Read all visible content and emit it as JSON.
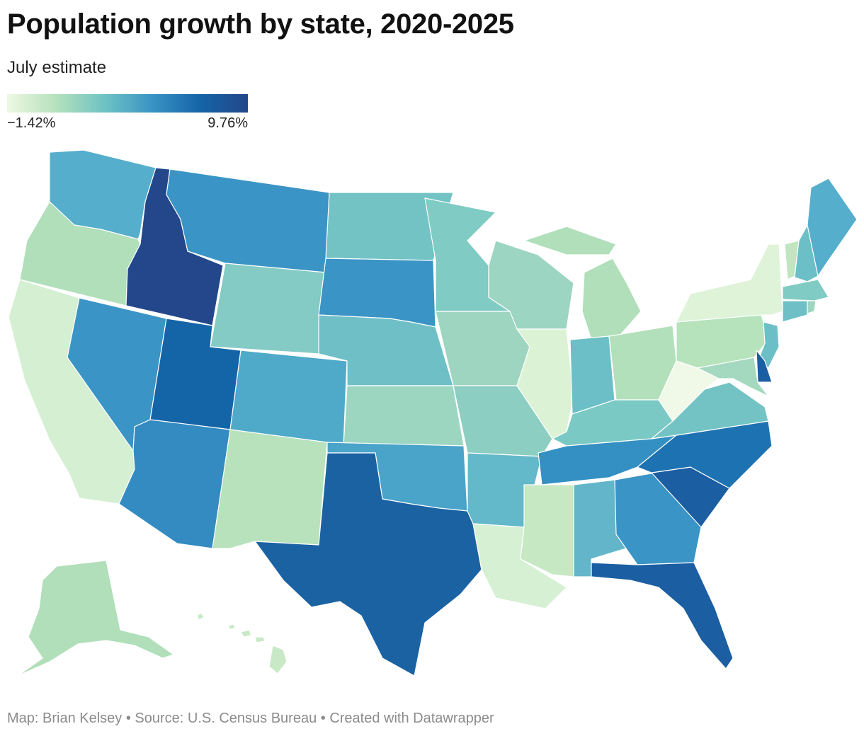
{
  "header": {
    "title": "Population growth by state, 2020-2025",
    "subtitle": "July estimate"
  },
  "legend": {
    "min_label": "−1.42%",
    "max_label": "9.76%",
    "min_value": -1.42,
    "max_value": 9.76,
    "color_ramp": [
      "#eef8e3",
      "#b6e2bc",
      "#6fc4c3",
      "#3a94c5",
      "#1465a7",
      "#23478a"
    ]
  },
  "footer": {
    "text": "Map: Brian Kelsey • Source: U.S. Census Bureau • Created with Datawrapper"
  },
  "map": {
    "type": "choropleth",
    "region": "United States",
    "states": [
      {
        "code": "WA",
        "color": "#55aecb"
      },
      {
        "code": "OR",
        "color": "#b0dfba"
      },
      {
        "code": "CA",
        "color": "#d4efd1"
      },
      {
        "code": "ID",
        "color": "#23478a"
      },
      {
        "code": "NV",
        "color": "#3a94c5"
      },
      {
        "code": "MT",
        "color": "#3a94c5"
      },
      {
        "code": "WY",
        "color": "#84cbc5"
      },
      {
        "code": "UT",
        "color": "#1465a7"
      },
      {
        "code": "CO",
        "color": "#4faac9"
      },
      {
        "code": "AZ",
        "color": "#348bc1"
      },
      {
        "code": "NM",
        "color": "#b8e2bb"
      },
      {
        "code": "ND",
        "color": "#73c3c4"
      },
      {
        "code": "SD",
        "color": "#3a94c5"
      },
      {
        "code": "NE",
        "color": "#6fc0c6"
      },
      {
        "code": "KS",
        "color": "#9cd6c1"
      },
      {
        "code": "OK",
        "color": "#4aa3c9"
      },
      {
        "code": "TX",
        "color": "#1b62a3"
      },
      {
        "code": "MN",
        "color": "#80cbc4"
      },
      {
        "code": "IA",
        "color": "#9dd5c1"
      },
      {
        "code": "MO",
        "color": "#8cceC2"
      },
      {
        "code": "AR",
        "color": "#63b8c9"
      },
      {
        "code": "LA",
        "color": "#d6f0d3"
      },
      {
        "code": "WI",
        "color": "#9cd5c1"
      },
      {
        "code": "IL",
        "color": "#dcf2d5"
      },
      {
        "code": "MI",
        "color": "#b0dfba"
      },
      {
        "code": "IN",
        "color": "#6cbfc6"
      },
      {
        "code": "OH",
        "color": "#b2e0bb"
      },
      {
        "code": "KY",
        "color": "#7ac9c4"
      },
      {
        "code": "TN",
        "color": "#3490c3"
      },
      {
        "code": "MS",
        "color": "#c6e8c3"
      },
      {
        "code": "AL",
        "color": "#63b6c9"
      },
      {
        "code": "GA",
        "color": "#3a94c5"
      },
      {
        "code": "FL",
        "color": "#1b5ea1"
      },
      {
        "code": "SC",
        "color": "#1b5ea1"
      },
      {
        "code": "NC",
        "color": "#1d72b2"
      },
      {
        "code": "VA",
        "color": "#73c3c4"
      },
      {
        "code": "WV",
        "color": "#f0f9e8"
      },
      {
        "code": "PA",
        "color": "#b6e2bc"
      },
      {
        "code": "NY",
        "color": "#def3d8"
      },
      {
        "code": "VT",
        "color": "#c0e5c0"
      },
      {
        "code": "NH",
        "color": "#6cbfc6"
      },
      {
        "code": "ME",
        "color": "#55aecb"
      },
      {
        "code": "MA",
        "color": "#80cbc4"
      },
      {
        "code": "CT",
        "color": "#6ebfc6"
      },
      {
        "code": "RI",
        "color": "#9dd5c1"
      },
      {
        "code": "NJ",
        "color": "#6cbfc6"
      },
      {
        "code": "DE",
        "color": "#1b5ea1"
      },
      {
        "code": "MD",
        "color": "#a4d9c0"
      },
      {
        "code": "AK",
        "color": "#b0dfba"
      },
      {
        "code": "HI",
        "color": "#c8e9c5"
      }
    ]
  }
}
